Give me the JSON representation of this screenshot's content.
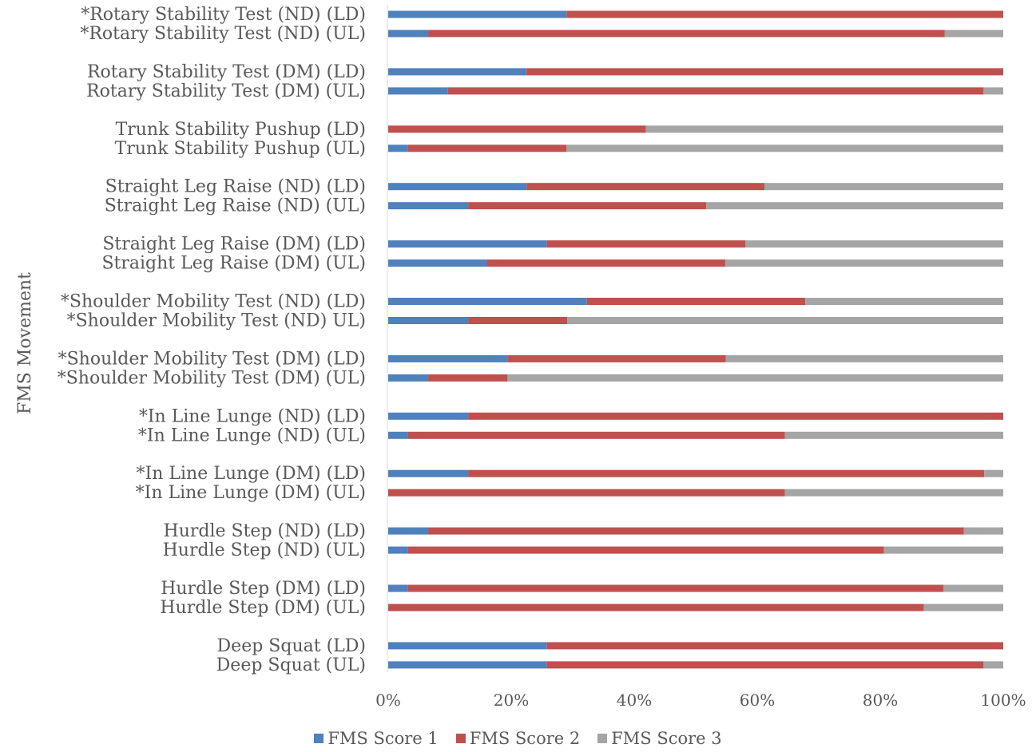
{
  "chart_data": {
    "type": "bar",
    "orientation": "horizontal",
    "stacked": "percent",
    "ylabel": "FMS Movement",
    "xlabel": "",
    "xlim": [
      0,
      100
    ],
    "x_ticks": [
      "0%",
      "20%",
      "40%",
      "60%",
      "80%",
      "100%"
    ],
    "legend_position": "bottom",
    "grid": false,
    "categories": [
      "*Rotary Stability Test (ND) (LD)",
      "*Rotary Stability Test (ND) (UL)",
      "Rotary Stability Test (DM) (LD)",
      "Rotary Stability Test (DM) (UL)",
      "Trunk Stability Pushup (LD)",
      "Trunk Stability Pushup (UL)",
      "Straight Leg Raise (ND) (LD)",
      "Straight Leg Raise (ND) (UL)",
      "Straight Leg Raise (DM) (LD)",
      "Straight Leg Raise (DM) (UL)",
      "*Shoulder Mobility Test (ND) (LD)",
      "*Shoulder Mobility Test (ND) UL)",
      "*Shoulder Mobility Test (DM) (LD)",
      "*Shoulder Mobility Test (DM) (UL)",
      "*In Line Lunge (ND) (LD)",
      "*In Line Lunge (ND) (UL)",
      "*In Line Lunge (DM) (LD)",
      "*In Line Lunge (DM) (UL)",
      "Hurdle Step (ND) (LD)",
      "Hurdle Step (ND) (UL)",
      "Hurdle Step (DM) (LD)",
      "Hurdle Step (DM) (UL)",
      "Deep Squat (LD)",
      "Deep Squat (UL)"
    ],
    "series": [
      {
        "name": "FMS Score 1",
        "color": "#4f81bd",
        "values": [
          29,
          6.5,
          22.5,
          9.7,
          0,
          3.2,
          22.5,
          13,
          25.8,
          16.1,
          32.3,
          13,
          19.4,
          6.5,
          13,
          3.2,
          13,
          0,
          6.5,
          3.2,
          3.2,
          0,
          25.8,
          25.8
        ]
      },
      {
        "name": "FMS Score 2",
        "color": "#c0504d",
        "values": [
          71,
          84,
          77.5,
          87.1,
          41.9,
          25.8,
          38.7,
          38.7,
          32.3,
          38.7,
          35.5,
          16.1,
          35.5,
          12.9,
          87,
          61.3,
          83.9,
          64.5,
          87.1,
          77.4,
          87.1,
          87.1,
          74.2,
          71
        ]
      },
      {
        "name": "FMS Score 3",
        "color": "#a5a5a5",
        "values": [
          0,
          9.5,
          0,
          3.2,
          58.1,
          71,
          38.8,
          48.3,
          41.9,
          45.2,
          32.2,
          70.9,
          45.1,
          80.6,
          0,
          35.5,
          3.1,
          35.5,
          6.4,
          19.4,
          9.7,
          12.9,
          0,
          3.2
        ]
      }
    ]
  }
}
